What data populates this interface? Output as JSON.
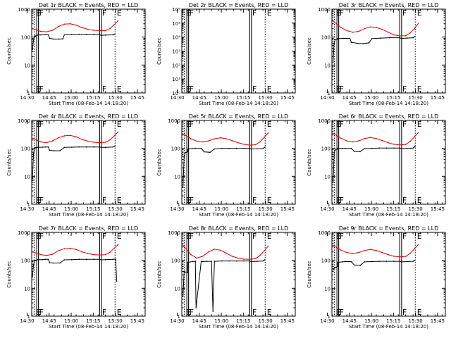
{
  "colors": {
    "events": "#000000",
    "lld": "#e00000",
    "axis": "#000000",
    "background": "#ffffff"
  },
  "chart_data": {
    "type": "line",
    "grid": "off",
    "ylog": true,
    "ylabel": "Counts/sec",
    "xlabel": "Start Time (08-Feb-14 14:18:20)",
    "xlim_minutes": [
      14.8,
      92.0
    ],
    "xticks": [
      "14:30",
      "14:45",
      "15:00",
      "15:15",
      "15:30",
      "15:45"
    ],
    "xticks_minutes": [
      11.67,
      26.67,
      41.67,
      56.67,
      71.67,
      86.67
    ],
    "flag_markers": [
      {
        "label": "E",
        "x": 16.5,
        "style": "dotted"
      },
      {
        "label": "F",
        "x": 18.7,
        "style": "solid"
      },
      {
        "label": "F",
        "x": 61.5,
        "style": "solid"
      },
      {
        "label": "E",
        "x": 71.5,
        "style": "dotted"
      }
    ],
    "panels": [
      {
        "title": "Det 1r BLACK = Events, RED = LLD",
        "ylim": [
          1,
          1000
        ],
        "yticks": [
          "1",
          "10",
          "100",
          "1000"
        ],
        "series": [
          {
            "name": "Events",
            "color": "#000000",
            "x": [
              15.3,
              16.0,
              16.8,
              17.5,
              19.0,
              21.0,
              24.0,
              26.0,
              27.0,
              30.0,
              33.0,
              36.0,
              37.0,
              42.0,
              47.0,
              52.0,
              57.0,
              61.0,
              62.0,
              65.0,
              70.0,
              71.5
            ],
            "y": [
              35,
              75,
              110,
              108,
              118,
              120,
              122,
              122,
              90,
              85,
              85,
              87,
              120,
              122,
              125,
              125,
              125,
              125,
              115,
              118,
              120,
              130
            ]
          },
          {
            "name": "LLD",
            "color": "#e00000",
            "x": [
              15.5,
              18.0,
              21.0,
              25.0,
              29.0,
              33.0,
              37.0,
              41.0,
              45.0,
              49.0,
              53.0,
              57.0,
              61.0,
              65.0,
              68.0,
              71.0,
              73.5
            ],
            "y": [
              200,
              180,
              160,
              155,
              175,
              240,
              290,
              300,
              270,
              220,
              190,
              175,
              170,
              170,
              200,
              280,
              380
            ]
          }
        ]
      },
      {
        "title": "Det 2r BLACK = Events, RED = LLD",
        "ylim": [
          1,
          1000000
        ],
        "yticks": [
          "10⁰",
          "10¹",
          "10²",
          "10³",
          "10⁴",
          "10⁵",
          "10⁶"
        ],
        "series": []
      },
      {
        "title": "Det 3r BLACK = Events, RED = LLD",
        "ylim": [
          1,
          1000
        ],
        "yticks": [
          "1",
          "10",
          "100",
          "1000"
        ],
        "series": [
          {
            "name": "Events",
            "color": "#000000",
            "x": [
              15.6,
              16.3,
              17.0,
              18.7,
              19.0,
              22.0,
              24.0,
              27.0,
              28.0,
              32.0,
              36.0,
              40.0,
              42.0,
              48.0,
              54.0,
              61.0,
              62.0,
              66.0,
              70.0,
              71.3
            ],
            "y": [
              12,
              60,
              82,
              85,
              88,
              90,
              90,
              90,
              65,
              60,
              58,
              62,
              88,
              92,
              95,
              95,
              90,
              92,
              95,
              105
            ]
          },
          {
            "name": "LLD",
            "color": "#e00000",
            "x": [
              15.5,
              18.0,
              21.0,
              25.0,
              29.0,
              33.0,
              37.0,
              41.0,
              45.0,
              49.0,
              53.0,
              57.0,
              61.0,
              65.0,
              68.0,
              71.0,
              73.5
            ],
            "y": [
              380,
              300,
              220,
              170,
              150,
              160,
              200,
              230,
              220,
              190,
              150,
              120,
              110,
              112,
              140,
              200,
              300
            ]
          }
        ]
      },
      {
        "title": "Det 4r BLACK = Events, RED = LLD",
        "ylim": [
          1,
          1000
        ],
        "yticks": [
          "1",
          "10",
          "100",
          "1000"
        ],
        "series": [
          {
            "name": "Events",
            "color": "#000000",
            "x": [
              15.3,
              16.0,
              16.8,
              17.5,
              19.0,
              22.0,
              24.0,
              26.0,
              27.0,
              30.0,
              34.0,
              37.0,
              42.0,
              47.0,
              52.0,
              57.0,
              61.0,
              62.0,
              65.0,
              70.0,
              71.5
            ],
            "y": [
              8,
              60,
              105,
              105,
              108,
              110,
              112,
              112,
              85,
              82,
              82,
              108,
              110,
              112,
              112,
              112,
              112,
              108,
              108,
              112,
              120
            ]
          },
          {
            "name": "LLD",
            "color": "#e00000",
            "x": [
              15.5,
              18.0,
              21.0,
              25.0,
              29.0,
              33.0,
              37.0,
              41.0,
              45.0,
              49.0,
              53.0,
              57.0,
              61.0,
              65.0,
              68.0,
              71.0,
              73.5
            ],
            "y": [
              230,
              200,
              170,
              160,
              185,
              240,
              280,
              290,
              260,
              210,
              180,
              165,
              160,
              165,
              200,
              280,
              380
            ]
          }
        ]
      },
      {
        "title": "Det 5r BLACK = Events, RED = LLD",
        "ylim": [
          1,
          1000
        ],
        "yticks": [
          "1",
          "10",
          "100",
          "1000"
        ],
        "series": [
          {
            "name": "Events",
            "color": "#000000",
            "x": [
              15.6,
              16.4,
              17.2,
              18.7,
              19.0,
              22.0,
              24.0,
              28.0,
              30.0,
              34.0,
              37.0,
              42.0,
              47.0,
              52.0,
              57.0,
              61.0,
              62.0,
              66.0,
              70.0,
              71.3
            ],
            "y": [
              4,
              50,
              70,
              75,
              95,
              98,
              100,
              100,
              75,
              72,
              95,
              100,
              100,
              100,
              100,
              100,
              95,
              96,
              98,
              110
            ]
          },
          {
            "name": "LLD",
            "color": "#e00000",
            "x": [
              15.5,
              18.0,
              21.0,
              25.0,
              29.0,
              33.0,
              37.0,
              41.0,
              45.0,
              49.0,
              53.0,
              57.0,
              61.0,
              65.0,
              68.0,
              71.0,
              73.5
            ],
            "y": [
              330,
              280,
              220,
              180,
              170,
              185,
              220,
              240,
              220,
              190,
              160,
              140,
              130,
              135,
              170,
              250,
              350
            ]
          }
        ]
      },
      {
        "title": "Det 6r BLACK = Events, RED = LLD",
        "ylim": [
          1,
          1000
        ],
        "yticks": [
          "1",
          "10",
          "100",
          "1000"
        ],
        "series": [
          {
            "name": "Events",
            "color": "#000000",
            "x": [
              15.6,
              16.4,
              17.2,
              18.7,
              19.0,
              22.0,
              24.0,
              28.0,
              30.0,
              34.0,
              37.0,
              42.0,
              47.0,
              52.0,
              57.0,
              61.0,
              62.0,
              66.0,
              70.0,
              71.3
            ],
            "y": [
              6,
              70,
              90,
              95,
              100,
              100,
              100,
              100,
              78,
              76,
              98,
              100,
              102,
              102,
              102,
              102,
              98,
              100,
              102,
              115
            ]
          },
          {
            "name": "LLD",
            "color": "#e00000",
            "x": [
              15.5,
              18.0,
              21.0,
              25.0,
              29.0,
              33.0,
              37.0,
              41.0,
              45.0,
              49.0,
              53.0,
              57.0,
              61.0,
              65.0,
              68.0,
              71.0,
              73.5
            ],
            "y": [
              340,
              290,
              230,
              185,
              170,
              185,
              225,
              245,
              225,
              190,
              160,
              140,
              132,
              138,
              175,
              260,
              360
            ]
          }
        ]
      },
      {
        "title": "Det 7r BLACK = Events, RED = LLD",
        "ylim": [
          1,
          1000
        ],
        "yticks": [
          "1",
          "10",
          "100",
          "1000"
        ],
        "series": [
          {
            "name": "Events",
            "color": "#000000",
            "x": [
              15.3,
              16.0,
              16.8,
              17.5,
              19.0,
              22.0,
              24.0,
              26.0,
              27.0,
              30.0,
              34.0,
              37.0,
              42.0,
              47.0,
              52.0,
              57.0,
              61.0,
              62.0,
              65.0,
              70.0,
              72.0,
              72.6
            ],
            "y": [
              25,
              65,
              100,
              100,
              105,
              106,
              108,
              108,
              82,
              80,
              80,
              104,
              106,
              108,
              108,
              108,
              108,
              104,
              105,
              108,
              110,
              18
            ]
          },
          {
            "name": "LLD",
            "color": "#e00000",
            "x": [
              15.5,
              18.0,
              21.0,
              25.0,
              29.0,
              33.0,
              37.0,
              41.0,
              45.0,
              49.0,
              53.0,
              57.0,
              61.0,
              65.0,
              68.0,
              71.0,
              73.5
            ],
            "y": [
              200,
              180,
              160,
              150,
              165,
              220,
              260,
              270,
              245,
              200,
              175,
              160,
              155,
              160,
              195,
              270,
              360
            ]
          }
        ]
      },
      {
        "title": "Det 8r BLACK = Events, RED = LLD",
        "ylim": [
          1,
          1000
        ],
        "yticks": [
          "1",
          "10",
          "100",
          "1000"
        ],
        "series": [
          {
            "name": "Events",
            "color": "#000000",
            "x": [
              15.6,
              16.4,
              17.2,
              18.7,
              19.0,
              22.0,
              24.0,
              24.5,
              28.0,
              32.0,
              35.0,
              36.0,
              37.0,
              42.0,
              47.0,
              52.0,
              57.0,
              61.0,
              62.0,
              66.0,
              70.0,
              71.3
            ],
            "y": [
              5,
              40,
              38,
              36,
              85,
              90,
              92,
              2,
              90,
              92,
              92,
              1.5,
              92,
              95,
              95,
              95,
              95,
              95,
              90,
              92,
              95,
              105
            ]
          },
          {
            "name": "LLD",
            "color": "#e00000",
            "x": [
              15.5,
              18.0,
              21.0,
              25.0,
              29.0,
              33.0,
              37.0,
              41.0,
              45.0,
              49.0,
              53.0,
              57.0,
              61.0,
              65.0,
              68.0,
              71.0,
              73.5
            ],
            "y": [
              350,
              250,
              160,
              120,
              140,
              200,
              250,
              230,
              180,
              140,
              120,
              110,
              108,
              115,
              150,
              220,
              320
            ]
          }
        ]
      },
      {
        "title": "Det 9r BLACK = Events, RED = LLD",
        "ylim": [
          1,
          1000
        ],
        "yticks": [
          "1",
          "10",
          "100",
          "1000"
        ],
        "series": [
          {
            "name": "Events",
            "color": "#000000",
            "x": [
              15.6,
              16.4,
              17.2,
              18.7,
              19.0,
              22.0,
              24.0,
              28.0,
              30.0,
              34.0,
              37.0,
              42.0,
              47.0,
              52.0,
              57.0,
              61.0,
              62.0,
              66.0,
              70.0,
              71.3
            ],
            "y": [
              45,
              52,
              55,
              60,
              85,
              88,
              90,
              90,
              68,
              66,
              88,
              90,
              92,
              92,
              92,
              92,
              88,
              90,
              92,
              100
            ]
          },
          {
            "name": "LLD",
            "color": "#e00000",
            "x": [
              15.5,
              18.0,
              21.0,
              25.0,
              29.0,
              33.0,
              37.0,
              41.0,
              45.0,
              49.0,
              53.0,
              57.0,
              61.0,
              65.0,
              68.0,
              71.0,
              73.5
            ],
            "y": [
              340,
              290,
              230,
              190,
              175,
              190,
              225,
              245,
              225,
              190,
              160,
              140,
              132,
              138,
              175,
              260,
              360
            ]
          }
        ]
      }
    ]
  }
}
